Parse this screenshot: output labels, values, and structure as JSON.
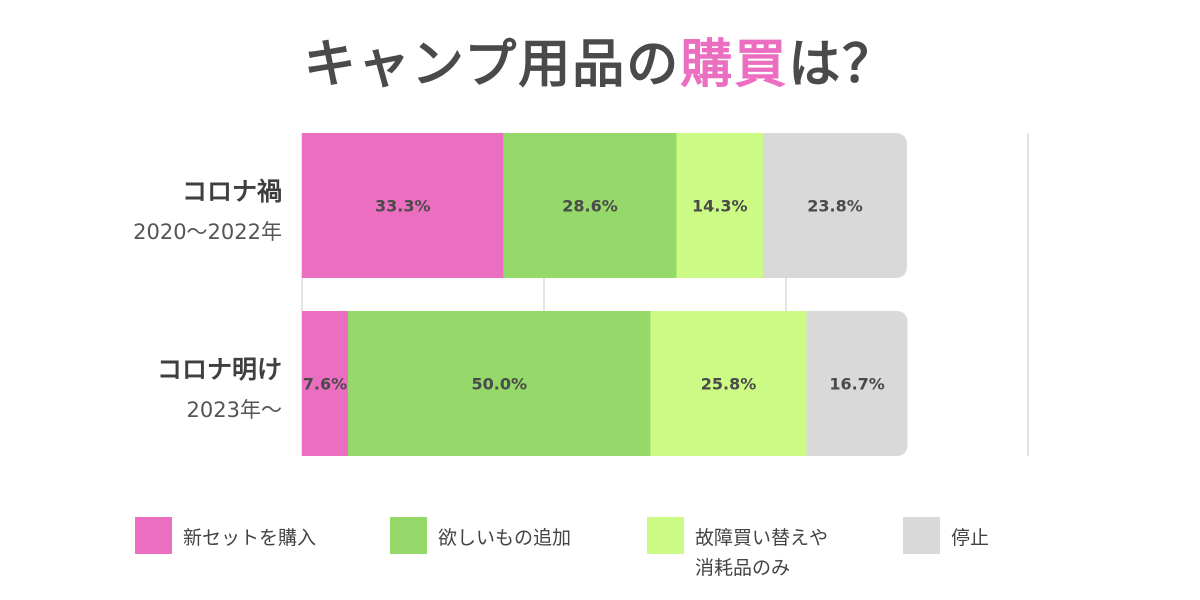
{
  "title": {
    "prefix": "キャンプ用品の",
    "highlight": "購買",
    "suffix": "は？"
  },
  "colors": {
    "pink": "#ec6ec0",
    "green": "#96d96b",
    "lime": "#ccfb85",
    "gray": "#d9d9d9"
  },
  "chart_data": {
    "type": "bar",
    "orientation": "horizontal",
    "stacked": true,
    "categories": [
      {
        "main": "コロナ禍",
        "sub": "2020〜2022年"
      },
      {
        "main": "コロナ明け",
        "sub": "2023年〜"
      }
    ],
    "series": [
      {
        "name": "新セットを購入",
        "values": [
          33.3,
          7.6
        ],
        "labels": [
          "33.3%",
          "7.6%"
        ],
        "color": "#ec6ec0"
      },
      {
        "name": "欲しいもの追加",
        "values": [
          28.6,
          50.0
        ],
        "labels": [
          "28.6%",
          "50.0%"
        ],
        "color": "#96d96b"
      },
      {
        "name": "故障買い替えや\n消耗品のみ",
        "values": [
          14.3,
          25.8
        ],
        "labels": [
          "14.3%",
          "25.8%"
        ],
        "color": "#ccfb85"
      },
      {
        "name": "停止",
        "values": [
          23.8,
          16.7
        ],
        "labels": [
          "23.8%",
          "16.7%"
        ],
        "color": "#d9d9d9"
      }
    ],
    "grid": true,
    "legend": "bottom"
  }
}
